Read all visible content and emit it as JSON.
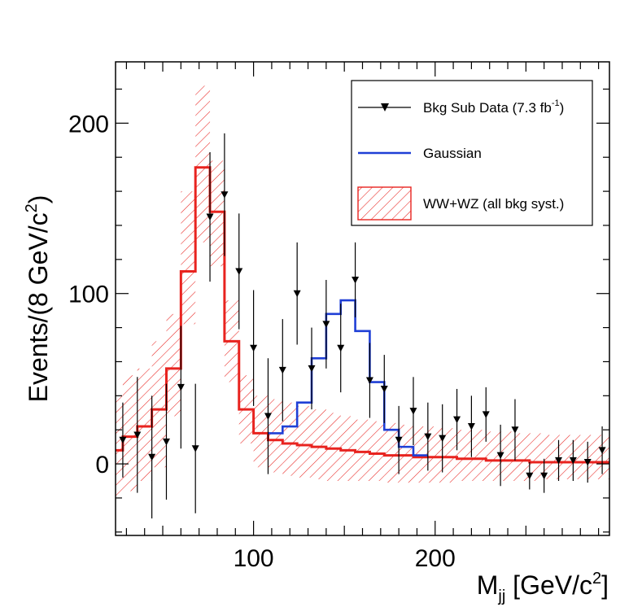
{
  "chart_data": {
    "type": "line",
    "title": "",
    "xlabel": "M",
    "xlabel_sub": "jj",
    "xlabel_unit_open": " [GeV/c",
    "xlabel_unit_sup": "2",
    "xlabel_unit_close": "]",
    "ylabel": "Events/(8 GeV/c",
    "ylabel_sup": "2",
    "ylabel_close": ")",
    "xlim": [
      24,
      296
    ],
    "ylim": [
      -42,
      236
    ],
    "x_ticks": [
      {
        "value": 100,
        "label": "100"
      },
      {
        "value": 200,
        "label": "200"
      }
    ],
    "y_ticks": [
      {
        "value": 0,
        "label": "0"
      },
      {
        "value": 100,
        "label": "100"
      },
      {
        "value": 200,
        "label": "200"
      }
    ],
    "legend": {
      "position": "top-right",
      "entries": [
        {
          "name": "Bkg Sub Data (7.3 fb",
          "sup": "-1",
          "close": ")",
          "style": "marker"
        },
        {
          "name": "Gaussian",
          "style": "line",
          "color": "#1f3fd6"
        },
        {
          "name": "WW+WZ (all bkg syst.)",
          "style": "hatch",
          "color": "#e8231f"
        }
      ]
    },
    "series": [
      {
        "name": "WW+WZ",
        "style": "step",
        "color": "#e8231f",
        "bin_width": 8,
        "bin_edges_start": 20,
        "values": [
          8,
          16,
          22,
          32,
          56,
          113,
          174,
          148,
          72,
          32,
          18,
          14,
          12,
          11,
          10,
          9,
          8,
          7,
          6,
          5,
          5,
          4,
          4,
          4,
          3,
          3,
          2,
          2,
          2,
          1,
          1,
          1,
          1,
          1,
          1,
          1
        ],
        "syst_low": [
          -20,
          -16,
          -10,
          -2,
          28,
          82,
          130,
          116,
          48,
          12,
          -2,
          -5,
          -7,
          -8,
          -9,
          -10,
          -10,
          -10,
          -10,
          -11,
          -11,
          -11,
          -11,
          -11,
          -10,
          -10,
          -10,
          -10,
          -10,
          -10,
          -9,
          -9,
          -9,
          -9,
          -9,
          -9
        ],
        "syst_high": [
          40,
          52,
          56,
          72,
          88,
          160,
          222,
          178,
          96,
          52,
          40,
          38,
          36,
          34,
          32,
          30,
          28,
          26,
          25,
          24,
          23,
          22,
          22,
          21,
          20,
          20,
          19,
          19,
          18,
          18,
          17,
          17,
          17,
          17,
          17,
          17
        ]
      },
      {
        "name": "Gaussian",
        "style": "step",
        "color": "#1f3fd6",
        "bin_width": 8,
        "bin_edges_start": 108,
        "values": [
          18,
          22,
          36,
          62,
          88,
          96,
          78,
          48,
          20,
          10,
          5
        ]
      },
      {
        "name": "Bkg Sub Data (7.3 fb-1)",
        "style": "points",
        "color": "#000000",
        "x": [
          28,
          36,
          44,
          52,
          60,
          68,
          76,
          84,
          92,
          100,
          108,
          116,
          124,
          132,
          140,
          148,
          156,
          164,
          172,
          180,
          188,
          196,
          204,
          212,
          220,
          228,
          236,
          244,
          252,
          260,
          268,
          276,
          284,
          292
        ],
        "y": [
          14,
          17,
          4,
          13,
          45,
          9,
          145,
          158,
          113,
          68,
          28,
          55,
          100,
          56,
          82,
          68,
          108,
          49,
          44,
          14,
          31,
          16,
          15,
          26,
          22,
          29,
          5,
          20,
          -7,
          -7,
          2,
          2,
          1,
          8
        ],
        "err": [
          22,
          34,
          36,
          34,
          36,
          38,
          38,
          36,
          34,
          34,
          34,
          30,
          30,
          24,
          26,
          26,
          22,
          22,
          20,
          20,
          20,
          20,
          20,
          18,
          18,
          16,
          18,
          18,
          8,
          10,
          12,
          12,
          12,
          14
        ]
      }
    ]
  }
}
